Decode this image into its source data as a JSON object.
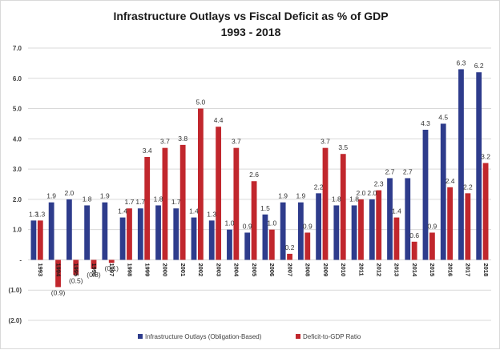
{
  "chart_data": {
    "type": "bar",
    "title": "Infrastructure Outlays vs Fiscal Deficit as % of GDP",
    "subtitle": "1993 - 2018",
    "xlabel": "",
    "ylabel": "",
    "ylim": [
      -2.0,
      7.0
    ],
    "yticks": [
      "(2.0)",
      "(1.0)",
      "-",
      "1.0",
      "2.0",
      "3.0",
      "4.0",
      "5.0",
      "6.0",
      "7.0"
    ],
    "grid": true,
    "legend_position": "bottom",
    "categories": [
      "1993",
      "1994",
      "1995",
      "1996",
      "1997",
      "1998",
      "1999",
      "2000",
      "2001",
      "2002",
      "2003",
      "2004",
      "2005",
      "2006",
      "2007",
      "2008",
      "2009",
      "2010",
      "2011",
      "2012",
      "2013",
      "2014",
      "2015",
      "2016",
      "2017",
      "2018"
    ],
    "series": [
      {
        "name": "Infrastructure Outlays (Obligation-Based)",
        "color": "#2e3c8c",
        "values": [
          1.3,
          1.9,
          2.0,
          1.8,
          1.9,
          1.4,
          1.7,
          1.8,
          1.7,
          1.4,
          1.3,
          1.0,
          0.9,
          1.5,
          1.9,
          1.9,
          2.2,
          1.8,
          1.8,
          2.0,
          2.7,
          2.7,
          4.3,
          4.5,
          6.3,
          6.2
        ],
        "labels": [
          "1.3",
          "1.9",
          "2.0",
          "1.8",
          "1.9",
          "1.4",
          "1.7",
          "1.8",
          "1.7",
          "1.4",
          "1.3",
          "1.0",
          "0.9",
          "1.5",
          "1.9",
          "1.9",
          "2.2",
          "1.8",
          "1.8",
          "2.0",
          "2.7",
          "2.7",
          "4.3",
          "4.5",
          "6.3",
          "6.2"
        ]
      },
      {
        "name": "Deficit-to-GDP Ratio",
        "color": "#c1272d",
        "values": [
          1.3,
          -0.9,
          -0.5,
          -0.3,
          -0.1,
          1.7,
          3.4,
          3.7,
          3.8,
          5.0,
          4.4,
          3.7,
          2.6,
          1.0,
          0.2,
          0.9,
          3.7,
          3.5,
          2.0,
          2.3,
          1.4,
          0.6,
          0.9,
          2.4,
          2.2,
          3.2
        ],
        "labels": [
          "1.3",
          "(0.9)",
          "(0.5)",
          "(0.3)",
          "(0.1)",
          "1.7",
          "3.4",
          "3.7",
          "3.8",
          "5.0",
          "4.4",
          "3.7",
          "2.6",
          "1.0",
          "0.2",
          "0.9",
          "3.7",
          "3.5",
          "2.0",
          "2.3",
          "1.4",
          "0.6",
          "0.9",
          "2.4",
          "2.2",
          "3.2"
        ]
      }
    ]
  }
}
